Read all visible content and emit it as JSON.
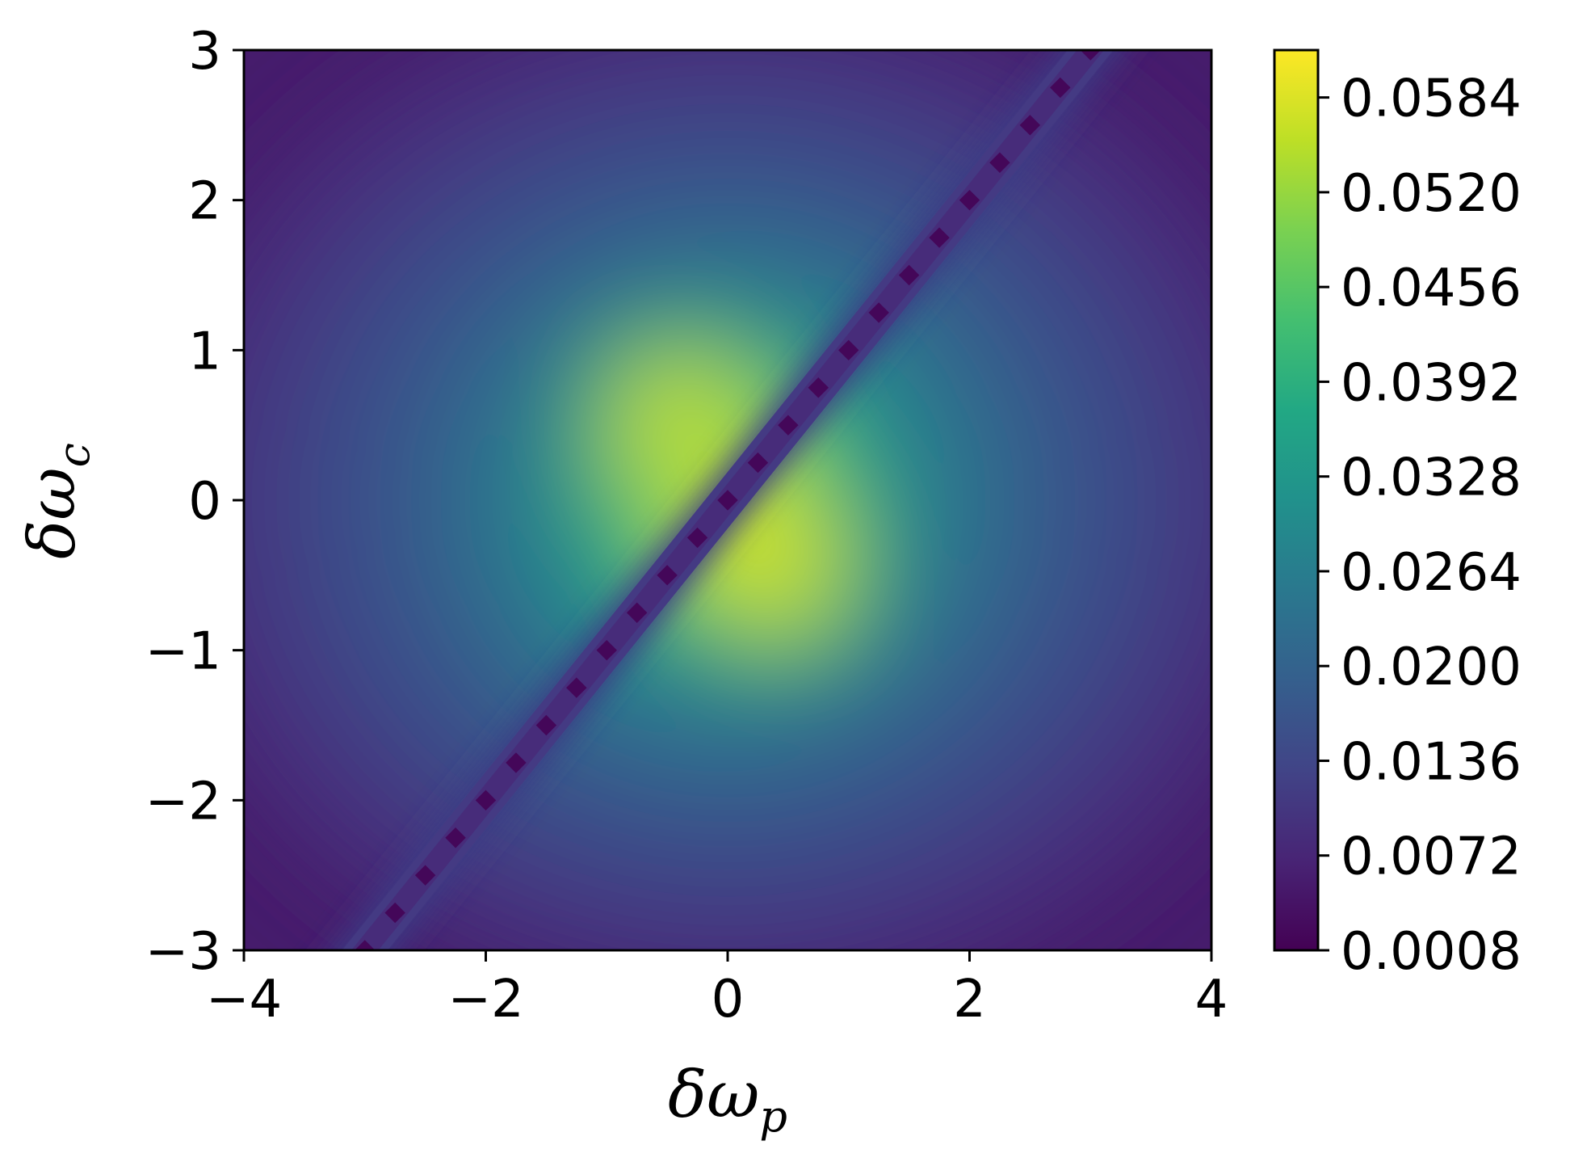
{
  "chart_data": {
    "type": "heatmap",
    "colormap": "viridis",
    "xlabel": "δω",
    "xlabel_subscript": "p",
    "ylabel": "δω",
    "ylabel_subscript": "c",
    "xlim": [
      -4,
      4
    ],
    "ylim": [
      -3,
      3
    ],
    "x_ticks": [
      -4,
      -2,
      0,
      2,
      4
    ],
    "x_tick_labels": [
      "−4",
      "−2",
      "0",
      "2",
      "4"
    ],
    "y_ticks": [
      -3,
      -2,
      -1,
      0,
      1,
      2,
      3
    ],
    "y_tick_labels": [
      "−3",
      "−2",
      "−1",
      "0",
      "1",
      "2",
      "3"
    ],
    "colorbar": {
      "min": 0.0008,
      "max": 0.0616,
      "ticks": [
        0.0008,
        0.0072,
        0.0136,
        0.02,
        0.0264,
        0.0328,
        0.0392,
        0.0456,
        0.052,
        0.0584
      ],
      "tick_labels": [
        "0.0008",
        "0.0072",
        "0.0136",
        "0.0200",
        "0.0264",
        "0.0328",
        "0.0392",
        "0.0456",
        "0.0520",
        "0.0584"
      ]
    },
    "features": {
      "peaks": [
        {
          "x": -0.25,
          "y": 0.35,
          "value": 0.06
        },
        {
          "x": 0.25,
          "y": -0.3,
          "value": 0.06
        }
      ],
      "dark_diagonal_line": {
        "slope": 1,
        "intercept": 0,
        "value": 0.0008
      }
    },
    "grid": false
  }
}
